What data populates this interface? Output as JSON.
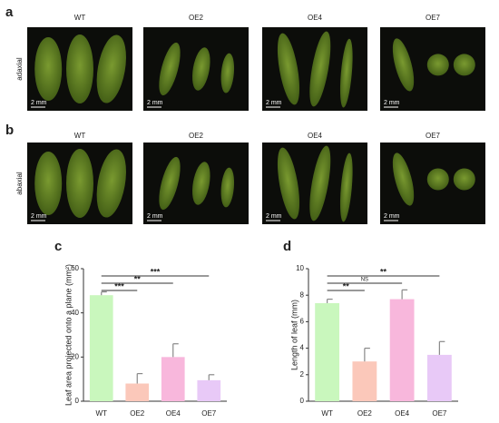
{
  "panels": [
    {
      "label": "a",
      "side": "adaxial",
      "genotypes": [
        "WT",
        "OE2",
        "OE4",
        "OE7"
      ],
      "scale_bars": [
        "2 mm",
        "2 mm",
        "2 mm",
        "2 mm"
      ]
    },
    {
      "label": "b",
      "side": "abaxial",
      "genotypes": [
        "WT",
        "OE2",
        "OE4",
        "OE7"
      ],
      "scale_bars": [
        "2 mm",
        "2 mm",
        "2 mm",
        "2 mm"
      ]
    }
  ],
  "chart_data": [
    {
      "type": "bar",
      "panel_label": "c",
      "y_label": "Leaf area projected onto a plane (mm²)",
      "categories": [
        "WT",
        "OE2",
        "OE4",
        "OE7"
      ],
      "values": [
        48,
        8,
        20,
        9.5
      ],
      "errors": [
        1.5,
        4.5,
        6,
        2.5
      ],
      "colors": [
        "#c9f7bd",
        "#fbc8ba",
        "#f8b7dc",
        "#e8c9f7"
      ],
      "ylim": [
        0,
        60
      ],
      "yticks": [
        0,
        20,
        40,
        60
      ],
      "significance": [
        "***",
        "**",
        "***"
      ]
    },
    {
      "type": "bar",
      "panel_label": "d",
      "y_label": "Length of leaf (mm)",
      "categories": [
        "WT",
        "OE2",
        "OE4",
        "OE7"
      ],
      "values": [
        7.4,
        3.0,
        7.7,
        3.5
      ],
      "errors": [
        0.3,
        1.0,
        0.7,
        1.0
      ],
      "colors": [
        "#c9f7bd",
        "#fbc8ba",
        "#f8b7dc",
        "#e8c9f7"
      ],
      "ylim": [
        0,
        10
      ],
      "yticks": [
        0,
        2,
        4,
        6,
        8,
        10
      ],
      "significance": [
        "**",
        "NS",
        "**"
      ]
    }
  ]
}
